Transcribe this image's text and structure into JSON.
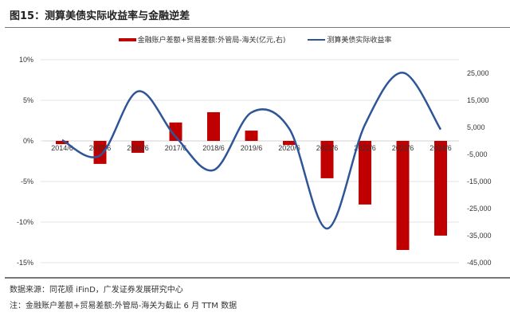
{
  "header": {
    "title": "图15：测算美债实际收益率与金融逆差"
  },
  "footer": {
    "source": "数据来源：同花顺 iFinD，广发证券发展研究中心",
    "note": "注：金融账户差额+贸易差额:外管局-海关为截止 6 月 TTM 数据"
  },
  "chart_data": {
    "type": "bar+line",
    "categories": [
      "2014/6",
      "2015/6",
      "2016/6",
      "2017/6",
      "2018/6",
      "2019/6",
      "2020/6",
      "2021/6",
      "2022/6",
      "2023/6",
      "2024/6"
    ],
    "series": [
      {
        "name": "金融账户差额+贸易差额:外管局-海关(亿元,右)",
        "type": "bar",
        "axis": "right",
        "color": "#c00000",
        "values": [
          -1200,
          -8500,
          -4400,
          6800,
          10600,
          3800,
          -1500,
          -13800,
          -23500,
          -40300,
          -35000
        ]
      },
      {
        "name": "测算美债实际收益率",
        "type": "line",
        "axis": "left",
        "color": "#2e5597",
        "values": [
          0.1,
          -1.8,
          6.1,
          0.5,
          -3.6,
          3.5,
          1.5,
          -10.8,
          2.0,
          8.4,
          1.4
        ]
      }
    ],
    "left_axis": {
      "ylim": [
        -15,
        10
      ],
      "ticks": [
        "10%",
        "5%",
        "0%",
        "-5%",
        "-10%",
        "-15%"
      ],
      "tick_values": [
        10,
        5,
        0,
        -5,
        -10,
        -15
      ]
    },
    "right_axis": {
      "ylim": [
        -45000,
        30000
      ],
      "ticks": [
        "25,000",
        "15,000",
        "5,000",
        "-5,000",
        "-15,000",
        "-25,000",
        "-35,000",
        "-45,000"
      ],
      "tick_values": [
        25000,
        15000,
        5000,
        -5000,
        -15000,
        -25000,
        -35000,
        -45000
      ]
    },
    "grid": true,
    "legend_position": "top"
  }
}
